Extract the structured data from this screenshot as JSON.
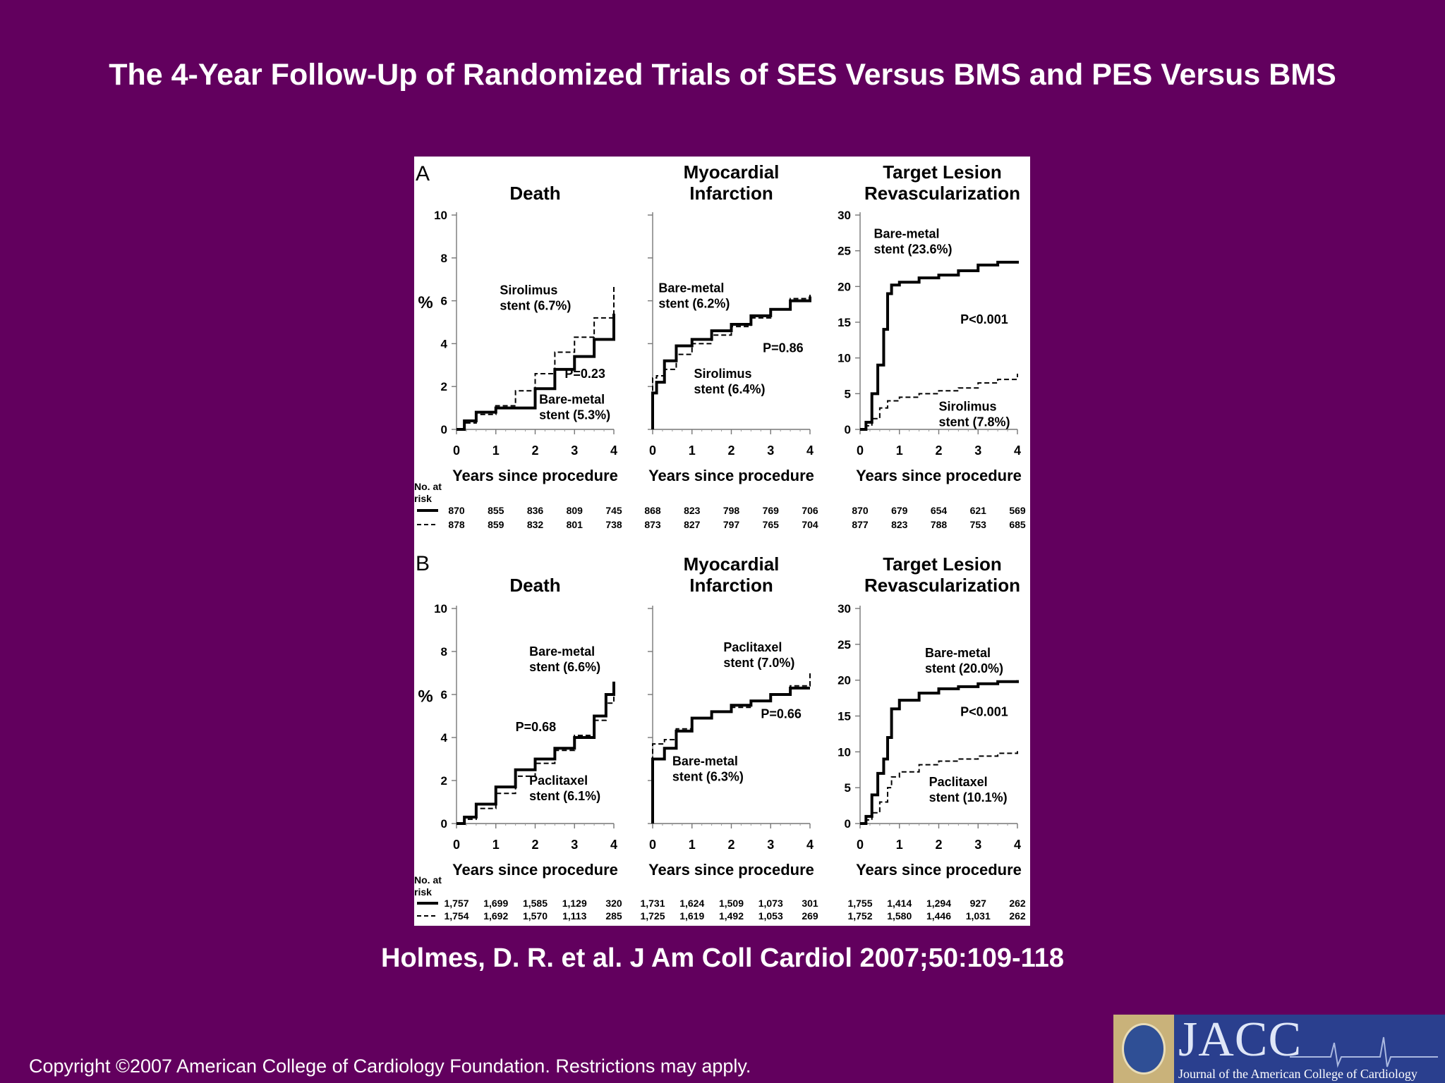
{
  "slide": {
    "title": "The 4-Year Follow-Up of Randomized Trials of SES Versus BMS and PES Versus BMS",
    "citation": "Holmes, D. R. et al. J Am Coll Cardiol 2007;50:109-118",
    "copyright": "Copyright ©2007 American College of Cardiology Foundation. Restrictions may apply.",
    "logo_text": "JACC",
    "logo_subtitle": "Journal of the American College of Cardiology",
    "background_color": "#62005e"
  },
  "no_at_risk_label": [
    "No. at",
    "risk"
  ],
  "xlabel": "Years since procedure",
  "chart_data": [
    {
      "panel": "A",
      "type": "line",
      "title": "Death",
      "ylabel": "%",
      "xlim": [
        0,
        4
      ],
      "ylim": [
        0,
        10
      ],
      "xticks": [
        "0",
        "1",
        "2",
        "3",
        "4"
      ],
      "yticks": [
        "0",
        "2",
        "4",
        "6",
        "8",
        "10"
      ],
      "series": [
        {
          "name": "Bare-metal stent (5.3%)",
          "style": "solid",
          "x": [
            0,
            0.2,
            0.5,
            1.0,
            1.5,
            2.0,
            2.5,
            3.0,
            3.5,
            4.0
          ],
          "y": [
            0,
            0.4,
            0.8,
            1.0,
            1.0,
            1.9,
            2.8,
            3.4,
            4.2,
            5.4
          ]
        },
        {
          "name": "Sirolimus stent (6.7%)",
          "style": "dashed",
          "x": [
            0,
            0.2,
            0.5,
            1.0,
            1.5,
            2.0,
            2.5,
            3.0,
            3.5,
            4.0
          ],
          "y": [
            0,
            0.3,
            0.7,
            1.1,
            1.8,
            2.6,
            3.6,
            4.3,
            5.2,
            6.7
          ]
        }
      ],
      "annotations": [
        {
          "text": [
            "Sirolimus",
            "stent (6.7%)"
          ],
          "x": 1.1,
          "y": 6.3
        },
        {
          "text": [
            "P=0.23"
          ],
          "x": 2.75,
          "y": 2.4
        },
        {
          "text": [
            "Bare-metal",
            "stent (5.3%)"
          ],
          "x": 2.1,
          "y": 1.2
        }
      ],
      "at_risk": {
        "solid": [
          "870",
          "855",
          "836",
          "809",
          "745"
        ],
        "dashed": [
          "878",
          "859",
          "832",
          "801",
          "738"
        ]
      }
    },
    {
      "panel": "A",
      "type": "line",
      "title": "Myocardial Infarction",
      "xlim": [
        0,
        4
      ],
      "ylim": [
        0,
        10
      ],
      "xticks": [
        "0",
        "1",
        "2",
        "3",
        "4"
      ],
      "yticks": [],
      "series": [
        {
          "name": "Bare-metal stent (6.2%)",
          "style": "solid",
          "x": [
            0,
            0,
            0.1,
            0.3,
            0.6,
            1.0,
            1.5,
            2.0,
            2.5,
            3.0,
            3.5,
            4.0
          ],
          "y": [
            0,
            1.7,
            2.2,
            3.2,
            3.9,
            4.2,
            4.6,
            4.9,
            5.3,
            5.6,
            6.0,
            6.2
          ]
        },
        {
          "name": "Sirolimus stent (6.4%)",
          "style": "dashed",
          "x": [
            0,
            0,
            0.1,
            0.3,
            0.6,
            1.0,
            1.5,
            2.0,
            2.5,
            3.0,
            3.5,
            4.0
          ],
          "y": [
            0,
            2.4,
            2.5,
            2.8,
            3.5,
            4.0,
            4.4,
            4.8,
            5.2,
            5.6,
            6.1,
            6.4
          ]
        }
      ],
      "annotations": [
        {
          "text": [
            "Bare-metal",
            "stent (6.2%)"
          ],
          "x": 0.15,
          "y": 6.4
        },
        {
          "text": [
            "P=0.86"
          ],
          "x": 2.8,
          "y": 3.6
        },
        {
          "text": [
            "Sirolimus",
            "stent (6.4%)"
          ],
          "x": 1.05,
          "y": 2.4
        }
      ],
      "at_risk": {
        "solid": [
          "868",
          "823",
          "798",
          "769",
          "706"
        ],
        "dashed": [
          "873",
          "827",
          "797",
          "765",
          "704"
        ]
      }
    },
    {
      "panel": "A",
      "type": "line",
      "title": "Target Lesion Revascularization",
      "xlim": [
        0,
        4
      ],
      "ylim": [
        0,
        30
      ],
      "xticks": [
        "0",
        "1",
        "2",
        "3",
        "4"
      ],
      "yticks": [
        "0",
        "5",
        "10",
        "15",
        "20",
        "25",
        "30"
      ],
      "series": [
        {
          "name": "Bare-metal stent (23.6%)",
          "style": "solid",
          "x": [
            0,
            0.15,
            0.3,
            0.45,
            0.6,
            0.7,
            0.8,
            1.0,
            1.5,
            2.0,
            2.5,
            3.0,
            3.5,
            4.0
          ],
          "y": [
            0,
            1,
            5,
            9,
            14,
            19,
            20.2,
            20.6,
            21.2,
            21.6,
            22.2,
            23.0,
            23.4,
            23.6
          ]
        },
        {
          "name": "Sirolimus stent (7.8%)",
          "style": "dashed",
          "x": [
            0,
            0.15,
            0.3,
            0.5,
            0.7,
            1.0,
            1.5,
            2.0,
            2.5,
            3.0,
            3.5,
            4.0
          ],
          "y": [
            0,
            0.5,
            1.5,
            3.0,
            4.0,
            4.5,
            5.0,
            5.4,
            5.8,
            6.5,
            7.0,
            7.8
          ]
        }
      ],
      "annotations": [
        {
          "text": [
            "Bare-metal",
            "stent (23.6%)"
          ],
          "x": 0.35,
          "y": 26.8
        },
        {
          "text": [
            "P<0.001"
          ],
          "x": 2.55,
          "y": 14.8
        },
        {
          "text": [
            "Sirolimus",
            "stent (7.8%)"
          ],
          "x": 2.0,
          "y": 2.6
        }
      ],
      "at_risk": {
        "solid": [
          "870",
          "679",
          "654",
          "621",
          "569"
        ],
        "dashed": [
          "877",
          "823",
          "788",
          "753",
          "685"
        ]
      }
    },
    {
      "panel": "B",
      "type": "line",
      "title": "Death",
      "ylabel": "%",
      "xlim": [
        0,
        4
      ],
      "ylim": [
        0,
        10
      ],
      "xticks": [
        "0",
        "1",
        "2",
        "3",
        "4"
      ],
      "yticks": [
        "0",
        "2",
        "4",
        "6",
        "8",
        "10"
      ],
      "series": [
        {
          "name": "Bare-metal stent (6.6%)",
          "style": "solid",
          "x": [
            0,
            0.2,
            0.5,
            1.0,
            1.5,
            2.0,
            2.5,
            3.0,
            3.5,
            3.8,
            4.0
          ],
          "y": [
            0,
            0.3,
            0.9,
            1.7,
            2.5,
            3.0,
            3.5,
            4.0,
            5.0,
            6.0,
            6.6
          ]
        },
        {
          "name": "Paclitaxel stent (6.1%)",
          "style": "dashed",
          "x": [
            0,
            0.2,
            0.5,
            1.0,
            1.5,
            2.0,
            2.5,
            3.0,
            3.5,
            3.8,
            4.0
          ],
          "y": [
            0,
            0.2,
            0.7,
            1.4,
            2.2,
            2.8,
            3.4,
            4.1,
            4.8,
            5.6,
            6.1
          ]
        }
      ],
      "annotations": [
        {
          "text": [
            "Bare-metal",
            "stent (6.6%)"
          ],
          "x": 1.85,
          "y": 7.8
        },
        {
          "text": [
            "P=0.68"
          ],
          "x": 1.5,
          "y": 4.3
        },
        {
          "text": [
            "Paclitaxel",
            "stent (6.1%)"
          ],
          "x": 1.85,
          "y": 1.8
        }
      ],
      "at_risk": {
        "solid": [
          "1,757",
          "1,699",
          "1,585",
          "1,129",
          "320"
        ],
        "dashed": [
          "1,754",
          "1,692",
          "1,570",
          "1,113",
          "285"
        ]
      }
    },
    {
      "panel": "B",
      "type": "line",
      "title": "Myocardial Infarction",
      "xlim": [
        0,
        4
      ],
      "ylim": [
        0,
        10
      ],
      "xticks": [
        "0",
        "1",
        "2",
        "3",
        "4"
      ],
      "yticks": [],
      "series": [
        {
          "name": "Bare-metal stent (6.3%)",
          "style": "solid",
          "x": [
            0,
            0,
            0.3,
            0.6,
            1.0,
            1.5,
            2.0,
            2.5,
            3.0,
            3.5,
            4.0
          ],
          "y": [
            0,
            3.0,
            3.5,
            4.3,
            4.9,
            5.2,
            5.5,
            5.7,
            6.0,
            6.3,
            6.3
          ]
        },
        {
          "name": "Paclitaxel stent (7.0%)",
          "style": "dashed",
          "x": [
            0,
            0,
            0.3,
            0.6,
            1.0,
            1.5,
            2.0,
            2.5,
            3.0,
            3.5,
            4.0
          ],
          "y": [
            0,
            3.7,
            3.9,
            4.4,
            4.9,
            5.2,
            5.4,
            5.7,
            6.0,
            6.4,
            7.0
          ]
        }
      ],
      "annotations": [
        {
          "text": [
            "Paclitaxel",
            "stent (7.0%)"
          ],
          "x": 1.8,
          "y": 8.0
        },
        {
          "text": [
            "P=0.66"
          ],
          "x": 2.75,
          "y": 4.9
        },
        {
          "text": [
            "Bare-metal",
            "stent (6.3%)"
          ],
          "x": 0.5,
          "y": 2.7
        }
      ],
      "at_risk": {
        "solid": [
          "1,731",
          "1,624",
          "1,509",
          "1,073",
          "301"
        ],
        "dashed": [
          "1,725",
          "1,619",
          "1,492",
          "1,053",
          "269"
        ]
      }
    },
    {
      "panel": "B",
      "type": "line",
      "title": "Target Lesion Revascularization",
      "xlim": [
        0,
        4
      ],
      "ylim": [
        0,
        30
      ],
      "xticks": [
        "0",
        "1",
        "2",
        "3",
        "4"
      ],
      "yticks": [
        "0",
        "5",
        "10",
        "15",
        "20",
        "25",
        "30"
      ],
      "series": [
        {
          "name": "Bare-metal stent (20.0%)",
          "style": "solid",
          "x": [
            0,
            0.15,
            0.3,
            0.45,
            0.6,
            0.7,
            0.8,
            1.0,
            1.5,
            2.0,
            2.5,
            3.0,
            3.5,
            4.0
          ],
          "y": [
            0,
            1,
            4,
            7,
            9,
            12,
            16,
            17.2,
            18.2,
            18.8,
            19.1,
            19.5,
            19.8,
            20.0
          ]
        },
        {
          "name": "Paclitaxel stent (10.1%)",
          "style": "dashed",
          "x": [
            0,
            0.15,
            0.3,
            0.5,
            0.7,
            0.8,
            1.0,
            1.5,
            2.0,
            2.5,
            3.0,
            3.5,
            4.0
          ],
          "y": [
            0,
            0.5,
            1.5,
            3.0,
            5.0,
            6.5,
            7.2,
            8.2,
            8.7,
            9.0,
            9.4,
            9.8,
            10.1
          ]
        }
      ],
      "annotations": [
        {
          "text": [
            "Bare-metal",
            "stent (20.0%)"
          ],
          "x": 1.65,
          "y": 23.2
        },
        {
          "text": [
            "P<0.001"
          ],
          "x": 2.55,
          "y": 15.0
        },
        {
          "text": [
            "Paclitaxel",
            "stent (10.1%)"
          ],
          "x": 1.75,
          "y": 5.2
        }
      ],
      "at_risk": {
        "solid": [
          "1,755",
          "1,414",
          "1,294",
          "927",
          "262"
        ],
        "dashed": [
          "1,752",
          "1,580",
          "1,446",
          "1,031",
          "262"
        ]
      }
    }
  ]
}
